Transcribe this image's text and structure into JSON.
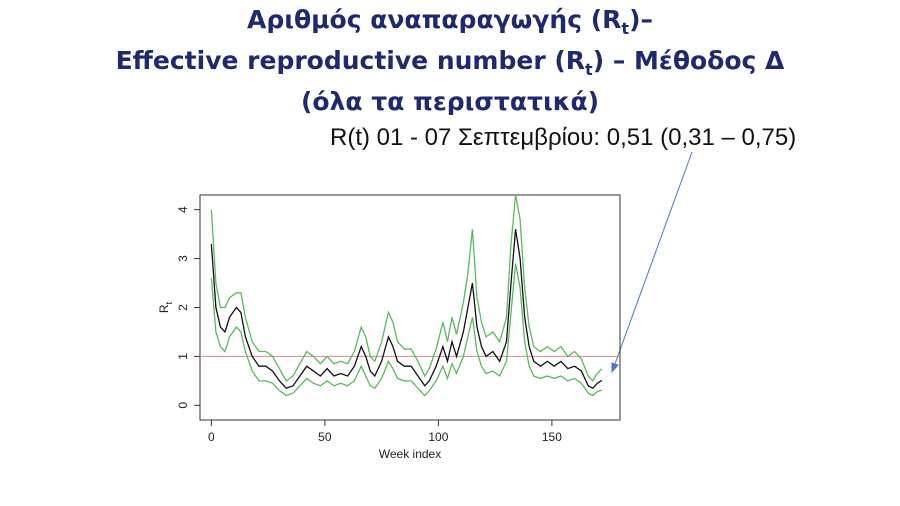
{
  "chart_data": {
    "type": "line",
    "title": [
      {
        "text": "Αριθμός αναπαραγωγής (R",
        "sub": "t",
        "after": ")–"
      },
      {
        "text": "Effective reproductive number (R",
        "sub": "t",
        "after": ") – Μέθοδος Δ"
      },
      {
        "text": "(όλα τα περιστατικά)"
      }
    ],
    "annotation": "R(t) 01 - 07 Σεπτεμβρίου: 0,51 (0,31 – 0,75)",
    "xlabel": "Week index",
    "ylabel": {
      "text": "R",
      "sub": "t"
    },
    "x": [
      0,
      2,
      4,
      6,
      8,
      11,
      13,
      15,
      18,
      21,
      24,
      27,
      30,
      33,
      36,
      39,
      42,
      45,
      48,
      51,
      54,
      57,
      60,
      63,
      66,
      68,
      70,
      72,
      75,
      78,
      80,
      82,
      85,
      88,
      91,
      94,
      96,
      99,
      102,
      104,
      106,
      108,
      111,
      113,
      115,
      117,
      119,
      121,
      124,
      127,
      130,
      132,
      134,
      136,
      138,
      140,
      142,
      145,
      148,
      151,
      154,
      157,
      160,
      163,
      166,
      168,
      170,
      172
    ],
    "series": [
      {
        "color": "#111111",
        "values": [
          3.3,
          2.0,
          1.6,
          1.5,
          1.8,
          2.0,
          1.9,
          1.4,
          1.0,
          0.8,
          0.8,
          0.7,
          0.5,
          0.35,
          0.4,
          0.6,
          0.8,
          0.7,
          0.6,
          0.75,
          0.6,
          0.65,
          0.6,
          0.8,
          1.2,
          1.0,
          0.7,
          0.6,
          0.9,
          1.4,
          1.2,
          0.9,
          0.8,
          0.8,
          0.6,
          0.4,
          0.5,
          0.8,
          1.2,
          0.9,
          1.3,
          1.0,
          1.5,
          2.0,
          2.5,
          1.6,
          1.2,
          1.0,
          1.1,
          0.9,
          1.3,
          2.5,
          3.6,
          3.0,
          1.8,
          1.2,
          0.9,
          0.8,
          0.9,
          0.8,
          0.9,
          0.75,
          0.8,
          0.7,
          0.4,
          0.35,
          0.45,
          0.51
        ]
      },
      {
        "color": "#5cb85c",
        "values": [
          2.6,
          1.5,
          1.2,
          1.1,
          1.4,
          1.6,
          1.5,
          1.1,
          0.7,
          0.5,
          0.5,
          0.45,
          0.3,
          0.2,
          0.25,
          0.4,
          0.55,
          0.45,
          0.4,
          0.5,
          0.4,
          0.45,
          0.4,
          0.5,
          0.8,
          0.6,
          0.4,
          0.35,
          0.55,
          0.9,
          0.75,
          0.55,
          0.5,
          0.5,
          0.35,
          0.2,
          0.3,
          0.5,
          0.8,
          0.55,
          0.85,
          0.65,
          1.0,
          1.4,
          1.8,
          1.1,
          0.8,
          0.65,
          0.7,
          0.6,
          0.9,
          1.9,
          2.9,
          2.4,
          1.3,
          0.8,
          0.6,
          0.55,
          0.6,
          0.55,
          0.6,
          0.5,
          0.55,
          0.45,
          0.25,
          0.2,
          0.28,
          0.31
        ]
      },
      {
        "color": "#5cb85c",
        "values": [
          4.0,
          2.5,
          2.0,
          2.0,
          2.2,
          2.3,
          2.3,
          1.8,
          1.3,
          1.1,
          1.1,
          1.0,
          0.75,
          0.5,
          0.6,
          0.85,
          1.1,
          1.0,
          0.85,
          1.0,
          0.85,
          0.9,
          0.85,
          1.1,
          1.6,
          1.4,
          1.0,
          0.9,
          1.3,
          1.9,
          1.7,
          1.3,
          1.15,
          1.15,
          0.9,
          0.6,
          0.75,
          1.15,
          1.7,
          1.3,
          1.8,
          1.45,
          2.1,
          2.7,
          3.6,
          2.2,
          1.7,
          1.4,
          1.5,
          1.3,
          1.8,
          3.3,
          4.3,
          3.8,
          2.4,
          1.6,
          1.2,
          1.1,
          1.2,
          1.1,
          1.2,
          1.0,
          1.1,
          0.95,
          0.6,
          0.5,
          0.65,
          0.75
        ]
      }
    ],
    "hline": 1,
    "hline_color": "#d08a8a",
    "xlim": [
      -5,
      180
    ],
    "xticks": [
      0,
      50,
      100,
      150
    ],
    "ylim": [
      -0.3,
      4.3
    ],
    "yticks": [
      0,
      1,
      2,
      3,
      4
    ]
  }
}
